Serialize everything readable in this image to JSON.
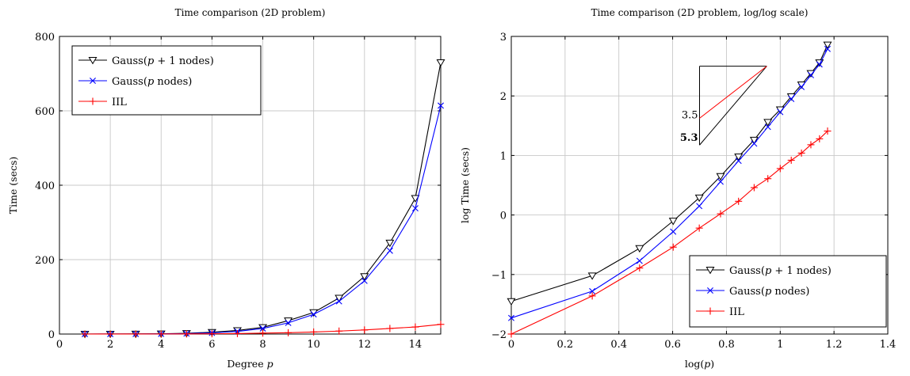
{
  "chart_data": [
    {
      "type": "line",
      "title": "Time comparison (2D problem)",
      "xlabel": "Degree p",
      "ylabel": "Time (secs)",
      "xlim": [
        0,
        15
      ],
      "ylim": [
        0,
        800
      ],
      "x_ticks": [
        0,
        2,
        4,
        6,
        8,
        10,
        12,
        14
      ],
      "y_ticks": [
        0,
        200,
        400,
        600,
        800
      ],
      "grid": true,
      "legend_position": "top-left",
      "x": [
        1,
        2,
        3,
        4,
        5,
        6,
        7,
        8,
        9,
        10,
        11,
        12,
        13,
        14,
        15
      ],
      "series": [
        {
          "name": "Gauss(p + 1 nodes)",
          "color": "#000000",
          "marker": "triangle-down-open",
          "values": [
            0.04,
            0.1,
            0.3,
            0.8,
            2,
            5,
            9.8,
            18,
            36,
            58,
            97,
            155,
            245,
            365,
            730
          ]
        },
        {
          "name": "Gauss(p nodes)",
          "color": "#0000ff",
          "marker": "x",
          "values": [
            0.02,
            0.05,
            0.17,
            0.5,
            1.3,
            3.2,
            7,
            15,
            30,
            53,
            88,
            143,
            224,
            338,
            614
          ]
        },
        {
          "name": "IIL",
          "color": "#ff0000",
          "marker": "plus",
          "values": [
            0.01,
            0.04,
            0.1,
            0.25,
            0.5,
            0.8,
            1.3,
            2.5,
            3.5,
            5.5,
            8,
            11,
            15,
            19,
            26
          ]
        }
      ]
    },
    {
      "type": "line",
      "title": "Time comparison (2D problem, log/log scale)",
      "xlabel": "log(p)",
      "ylabel": "log Time (secs)",
      "xlim": [
        0,
        1.4
      ],
      "ylim": [
        -2,
        3
      ],
      "x_ticks": [
        0,
        0.2,
        0.4,
        0.6,
        0.8,
        1,
        1.2,
        1.4
      ],
      "y_ticks": [
        -2,
        -1,
        0,
        1,
        2,
        3
      ],
      "grid": true,
      "legend_position": "bottom-right",
      "x": [
        0,
        0.301,
        0.477,
        0.602,
        0.699,
        0.778,
        0.845,
        0.903,
        0.954,
        1.0,
        1.041,
        1.079,
        1.114,
        1.146,
        1.176
      ],
      "series": [
        {
          "name": "Gauss(p + 1 nodes)",
          "color": "#000000",
          "marker": "triangle-down-open",
          "values": [
            -1.45,
            -1.02,
            -0.56,
            -0.1,
            0.29,
            0.65,
            0.98,
            1.26,
            1.56,
            1.77,
            1.99,
            2.19,
            2.38,
            2.56,
            2.86
          ]
        },
        {
          "name": "Gauss(p nodes)",
          "color": "#0000ff",
          "marker": "x",
          "values": [
            -1.73,
            -1.28,
            -0.77,
            -0.28,
            0.15,
            0.56,
            0.91,
            1.2,
            1.48,
            1.73,
            1.95,
            2.15,
            2.35,
            2.53,
            2.79
          ]
        },
        {
          "name": "IIL",
          "color": "#ff0000",
          "marker": "plus",
          "values": [
            -2.0,
            -1.36,
            -0.89,
            -0.54,
            -0.22,
            0.02,
            0.23,
            0.46,
            0.61,
            0.78,
            0.92,
            1.04,
            1.18,
            1.28,
            1.41
          ]
        }
      ],
      "annotations": [
        {
          "text": "3.5",
          "color": "#ff0000"
        },
        {
          "text": "5.3",
          "color": "#000066"
        }
      ],
      "slope_triangle": {
        "apex": [
          0.95,
          2.5
        ],
        "x_start": 0.7,
        "y_red": 1.625,
        "y_black": 1.175
      }
    }
  ]
}
